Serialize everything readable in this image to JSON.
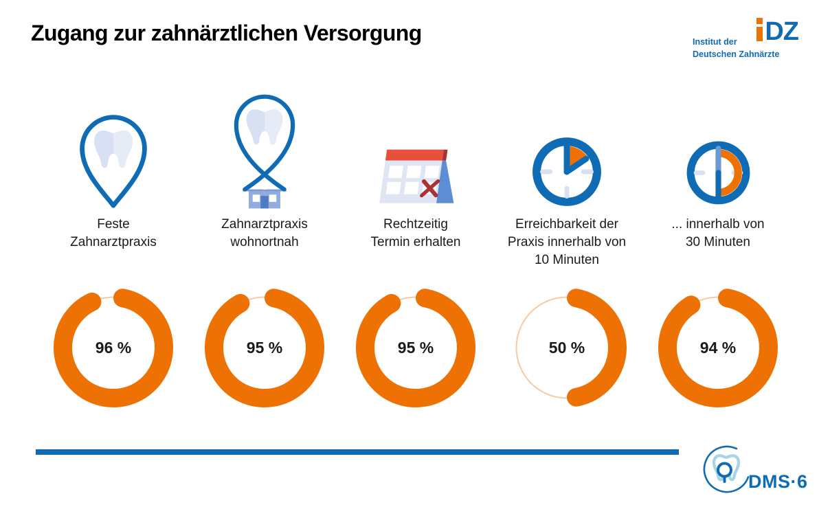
{
  "header": {
    "title": "Zugang zur zahnärztlichen Versorgung",
    "idz_logo": {
      "mark_i": "i",
      "mark_dz": "DZ",
      "line1": "Institut der",
      "line2": "Deutschen Zahnärzte"
    }
  },
  "columns": [
    {
      "icon": "tooth-location-pin",
      "label": "Feste\nZahnarztpraxis",
      "value_label": "96 %"
    },
    {
      "icon": "tooth-pin-house",
      "label": "Zahnarztpraxis\nwohnortnah",
      "value_label": "95 %"
    },
    {
      "icon": "calendar-appointment",
      "label": "Rechtzeitig\nTermin erhalten",
      "value_label": "95 %"
    },
    {
      "icon": "clock-10-minutes",
      "label": "Erreichbarkeit der\nPraxis innerhalb von\n10 Minuten",
      "value_label": "50 %"
    },
    {
      "icon": "clock-30-minutes",
      "label": "... innerhalb von\n30 Minuten",
      "value_label": "94 %"
    }
  ],
  "chart_data": {
    "type": "pie",
    "variant": "donut-gauge-row",
    "title": "Zugang zur zahnärztlichen Versorgung",
    "categories": [
      "Feste Zahnarztpraxis",
      "Zahnarztpraxis wohnortnah",
      "Rechtzeitig Termin erhalten",
      "Erreichbarkeit der Praxis innerhalb von 10 Minuten",
      "... innerhalb von 30 Minuten"
    ],
    "values": [
      96,
      95,
      95,
      50,
      94
    ],
    "unit": "%",
    "legend": "none",
    "value_arc_color": "#EE7203",
    "remainder_arc_color": "#F8C9A0"
  },
  "footer": {
    "dms_label": "DMS·6"
  },
  "colors": {
    "blue": "#0F6CB4",
    "orange": "#EE7203",
    "orange_light": "#F8C9A0",
    "lavender": "#D8E0F3",
    "lavender_light": "#E6EBF8",
    "house_body": "#93ACDE",
    "house_roof": "#7E9CD0",
    "house_door": "#4E7CC4",
    "cal_red": "#E8503C",
    "cal_dark_red": "#A93234",
    "cal_side_blue": "#5D8DD3",
    "cal_body": "#E0E5F4",
    "hand_light": "#6E99D3",
    "dms_tooth": "#A9D3E6",
    "text_dark": "#1A1A1A"
  }
}
